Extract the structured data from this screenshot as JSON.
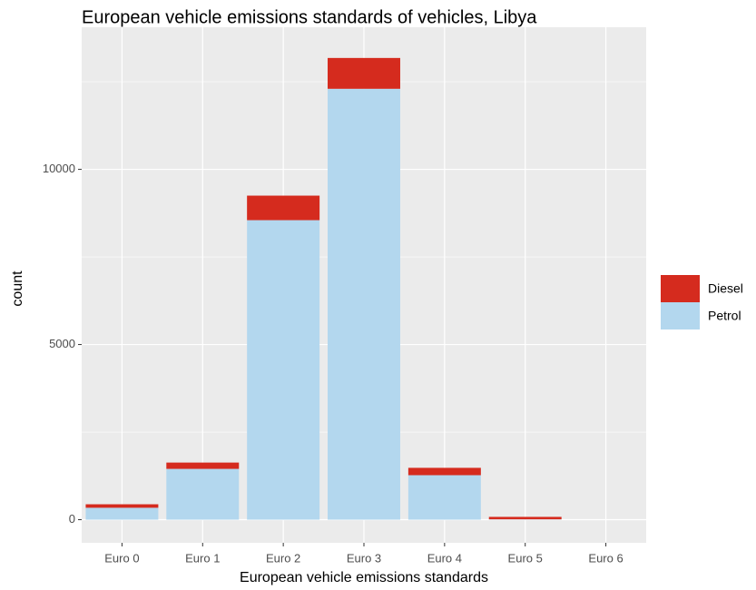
{
  "chart_data": {
    "type": "stacked_bar",
    "title": "European vehicle emissions standards of vehicles, Libya",
    "x_label": "European vehicle emissions standards",
    "y_label": "count",
    "categories": [
      "Euro 0",
      "Euro 1",
      "Euro 2",
      "Euro 3",
      "Euro 4",
      "Euro 5",
      "Euro 6"
    ],
    "series": [
      {
        "name": "Diesel",
        "color": "#d52b1e",
        "values": [
          100,
          180,
          700,
          880,
          210,
          70,
          0
        ]
      },
      {
        "name": "Petrol",
        "color": "#b3d7ee",
        "values": [
          340,
          1450,
          8550,
          12300,
          1270,
          10,
          0
        ]
      }
    ],
    "ylim": [
      -660,
      13850
    ],
    "yticks": [
      0,
      5000,
      10000
    ],
    "minor_yticks": [
      2500,
      7500,
      12500
    ],
    "grid": true
  }
}
